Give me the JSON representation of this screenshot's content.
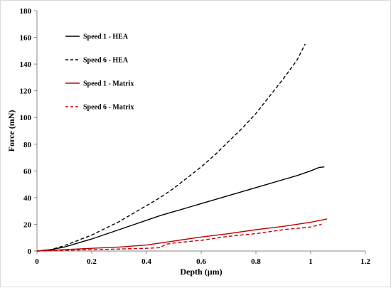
{
  "chart_data": {
    "type": "line",
    "xlabel": "Depth (µm)",
    "ylabel": "Force (mN)",
    "xlim": [
      0,
      1.2
    ],
    "ylim": [
      0,
      180
    ],
    "x_ticks": [
      "0",
      "0.2",
      "0.4",
      "0.6",
      "0.8",
      "1",
      "1.2"
    ],
    "y_ticks": [
      "0",
      "20",
      "40",
      "60",
      "80",
      "100",
      "120",
      "140",
      "160",
      "180"
    ],
    "grid": false,
    "legend_position": "top-left",
    "series": [
      {
        "name": "Speed 1 - HEA",
        "color": "#000000",
        "dash": "solid",
        "x": [
          0,
          0.05,
          0.1,
          0.15,
          0.2,
          0.25,
          0.3,
          0.35,
          0.4,
          0.45,
          0.5,
          0.55,
          0.6,
          0.65,
          0.7,
          0.75,
          0.8,
          0.85,
          0.9,
          0.95,
          1.0,
          1.03,
          1.05
        ],
        "y": [
          0,
          1,
          3,
          6,
          9,
          12.5,
          16,
          19.5,
          23,
          26.5,
          29.5,
          32.5,
          35.5,
          38.5,
          41.5,
          44.5,
          47.5,
          50.5,
          53.5,
          56.5,
          60,
          62.5,
          63
        ]
      },
      {
        "name": "Speed 6 - HEA",
        "color": "#000000",
        "dash": "dashed",
        "x": [
          0,
          0.05,
          0.1,
          0.15,
          0.2,
          0.25,
          0.3,
          0.35,
          0.4,
          0.45,
          0.5,
          0.55,
          0.6,
          0.65,
          0.7,
          0.75,
          0.8,
          0.85,
          0.9,
          0.95,
          0.98
        ],
        "y": [
          0,
          1,
          4,
          8,
          12,
          17,
          22,
          28,
          34,
          40,
          47,
          55,
          63,
          72,
          82,
          92,
          103,
          116,
          129,
          143,
          155
        ]
      },
      {
        "name": "Speed 1 - Matrix",
        "color": "#c00000",
        "dash": "solid",
        "x": [
          0,
          0.1,
          0.2,
          0.3,
          0.4,
          0.5,
          0.6,
          0.7,
          0.8,
          0.9,
          1.0,
          1.06
        ],
        "y": [
          0,
          1,
          2,
          3,
          4.5,
          7.5,
          10.5,
          13,
          16,
          18.5,
          21.5,
          24
        ]
      },
      {
        "name": "Speed 6 - Matrix",
        "color": "#c00000",
        "dash": "dashed",
        "x": [
          0,
          0.1,
          0.2,
          0.3,
          0.4,
          0.45,
          0.47,
          0.5,
          0.6,
          0.7,
          0.8,
          0.9,
          1.0,
          1.04
        ],
        "y": [
          0,
          0.5,
          1,
          1.5,
          2,
          2.5,
          5,
          6,
          8,
          11,
          13,
          16,
          18,
          20
        ]
      }
    ]
  }
}
